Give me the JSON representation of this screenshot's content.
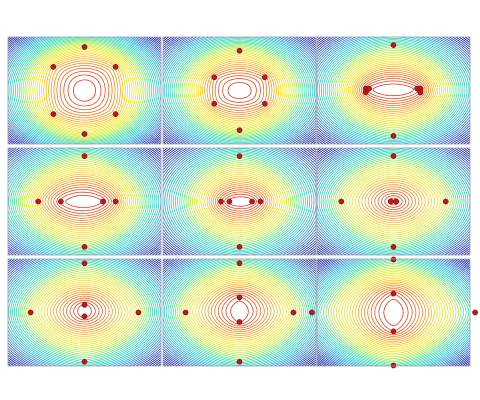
{
  "figure": {
    "rows": 3,
    "columns": 3,
    "contour_levels": 44,
    "colormap": [
      "#0b0f86",
      "#1e2fb0",
      "#2f7fd8",
      "#27c6d8",
      "#46e0a0",
      "#c6ee3a",
      "#ffe41a",
      "#ff8c14",
      "#e8321c"
    ],
    "point_color": "#c2161a",
    "point_edge_color": "#5a0608"
  },
  "panels": [
    {
      "id": "row1-col1",
      "points": [
        [
          0,
          0.46
        ],
        [
          -0.37,
          0.25
        ],
        [
          0.37,
          0.25
        ],
        [
          -0.37,
          -0.25
        ],
        [
          0.37,
          -0.25
        ],
        [
          0,
          -0.46
        ]
      ]
    },
    {
      "id": "row1-col2",
      "points": [
        [
          0,
          0.42
        ],
        [
          -0.3,
          0.14
        ],
        [
          0.3,
          0.14
        ],
        [
          -0.3,
          -0.14
        ],
        [
          0.3,
          -0.14
        ],
        [
          0,
          -0.42
        ]
      ]
    },
    {
      "id": "row1-col3",
      "points": [
        [
          0,
          0.48
        ],
        [
          -0.33,
          0.02
        ],
        [
          -0.29,
          0.02
        ],
        [
          0.28,
          0.02
        ],
        [
          0.32,
          0.02
        ],
        [
          -0.33,
          -0.02
        ],
        [
          0.32,
          -0.02
        ],
        [
          0,
          -0.48
        ]
      ]
    },
    {
      "id": "row2-col1",
      "points": [
        [
          0,
          0.48
        ],
        [
          -0.55,
          0
        ],
        [
          -0.28,
          0
        ],
        [
          0.22,
          0
        ],
        [
          0.37,
          0
        ],
        [
          0,
          -0.48
        ]
      ]
    },
    {
      "id": "row2-col2",
      "points": [
        [
          0,
          0.48
        ],
        [
          -0.22,
          0
        ],
        [
          -0.12,
          0
        ],
        [
          0.15,
          0
        ],
        [
          0.25,
          0
        ],
        [
          0,
          -0.48
        ]
      ]
    },
    {
      "id": "row2-col3",
      "points": [
        [
          0,
          0.48
        ],
        [
          -0.62,
          0
        ],
        [
          -0.03,
          0
        ],
        [
          0.03,
          0
        ],
        [
          0.62,
          0
        ],
        [
          0,
          -0.48
        ]
      ]
    },
    {
      "id": "row3-col1",
      "points": [
        [
          0,
          0.52
        ],
        [
          -0.64,
          0
        ],
        [
          0,
          0.08
        ],
        [
          0,
          -0.04
        ],
        [
          0.64,
          0
        ],
        [
          0,
          -0.52
        ]
      ]
    },
    {
      "id": "row3-col2",
      "points": [
        [
          0,
          0.52
        ],
        [
          -0.64,
          0
        ],
        [
          0,
          0.16
        ],
        [
          0,
          -0.1
        ],
        [
          0.64,
          0
        ],
        [
          0,
          -0.52
        ]
      ]
    },
    {
      "id": "row3-col3",
      "points": [
        [
          0,
          0.56
        ],
        [
          -0.97,
          0
        ],
        [
          0,
          0.2
        ],
        [
          0,
          -0.2
        ],
        [
          0.97,
          0
        ],
        [
          0,
          -0.56
        ]
      ]
    }
  ]
}
